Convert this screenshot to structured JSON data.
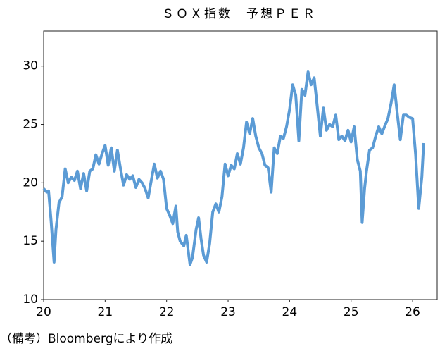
{
  "chart_data": {
    "type": "line",
    "title": "ＳＯＸ指数　予想ＰＥＲ",
    "note": "（備考）Bloombergにより作成",
    "color": "#5b9bd5",
    "x": [
      20.0,
      20.05,
      20.08,
      20.12,
      20.17,
      20.2,
      20.25,
      20.3,
      20.35,
      20.4,
      20.45,
      20.5,
      20.55,
      20.6,
      20.65,
      20.7,
      20.75,
      20.8,
      20.85,
      20.9,
      20.95,
      21.0,
      21.05,
      21.1,
      21.15,
      21.2,
      21.25,
      21.3,
      21.35,
      21.4,
      21.45,
      21.5,
      21.55,
      21.6,
      21.65,
      21.7,
      21.75,
      21.8,
      21.85,
      21.9,
      21.95,
      22.0,
      22.05,
      22.1,
      22.15,
      22.18,
      22.22,
      22.28,
      22.32,
      22.38,
      22.42,
      22.48,
      22.52,
      22.56,
      22.6,
      22.65,
      22.7,
      22.75,
      22.8,
      22.85,
      22.9,
      22.95,
      23.0,
      23.05,
      23.1,
      23.15,
      23.2,
      23.25,
      23.3,
      23.35,
      23.4,
      23.45,
      23.5,
      23.55,
      23.6,
      23.65,
      23.7,
      23.75,
      23.8,
      23.85,
      23.9,
      23.95,
      24.0,
      24.05,
      24.1,
      24.15,
      24.2,
      24.25,
      24.3,
      24.35,
      24.4,
      24.45,
      24.5,
      24.55,
      24.6,
      24.65,
      24.7,
      24.75,
      24.8,
      24.85,
      24.9,
      24.95,
      25.0,
      25.05,
      25.1,
      25.15,
      25.18,
      25.22,
      25.25,
      25.3,
      25.35,
      25.4,
      25.45,
      25.5,
      25.55,
      25.6,
      25.65,
      25.7,
      25.75,
      25.8,
      25.85,
      25.9,
      25.95,
      26.0,
      26.05,
      26.1,
      26.15,
      26.18
    ],
    "values": [
      19.5,
      19.2,
      19.3,
      16.8,
      13.2,
      16,
      18.3,
      18.8,
      21.2,
      20,
      20.5,
      20.2,
      21,
      19.5,
      20.8,
      19.3,
      21,
      21.2,
      22.4,
      21.6,
      22.5,
      23.2,
      21.5,
      23,
      21,
      22.8,
      21.2,
      19.8,
      20.7,
      20.3,
      20.6,
      19.6,
      20.3,
      20,
      19.5,
      18.7,
      20.2,
      21.6,
      20.4,
      21,
      20.3,
      17.8,
      17.2,
      16.5,
      18,
      15.8,
      15,
      14.6,
      15.5,
      13,
      13.6,
      16,
      17,
      15.2,
      13.8,
      13.2,
      14.8,
      17.5,
      18.2,
      17.5,
      18.8,
      21.6,
      20.6,
      21.5,
      21.2,
      22.5,
      21.6,
      23,
      25.2,
      24.2,
      25.5,
      24,
      23,
      22.5,
      21.5,
      21.3,
      19.2,
      23,
      22.5,
      24,
      23.8,
      24.8,
      26.3,
      28.4,
      27.5,
      23.6,
      28,
      27.5,
      29.5,
      28.4,
      29,
      26.5,
      24,
      26.4,
      24.5,
      25,
      24.8,
      25.8,
      23.7,
      24,
      23.6,
      24.5,
      23.5,
      24.8,
      22,
      21,
      16.6,
      19.5,
      21,
      22.8,
      23,
      24,
      24.8,
      24.2,
      24.9,
      25.5,
      26.8,
      28.4,
      26,
      23.7,
      25.8,
      25.8,
      25.6,
      25.5,
      22.4,
      17.8,
      20.5,
      23.4
    ],
    "xlim": [
      20,
      26.4
    ],
    "xticks": [
      20,
      21,
      22,
      23,
      24,
      25,
      26
    ],
    "ylim": [
      10,
      33
    ],
    "yticks": [
      10,
      15,
      20,
      25,
      30
    ]
  }
}
